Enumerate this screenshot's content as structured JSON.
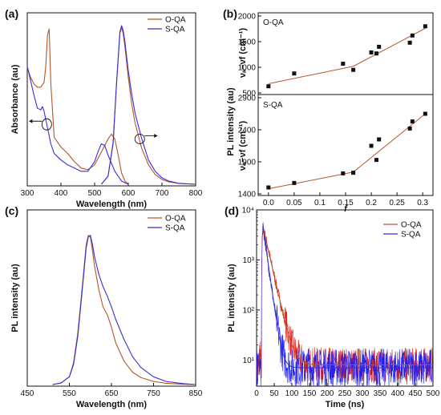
{
  "panels": [
    {
      "id": "a",
      "label": "(a)"
    },
    {
      "id": "b",
      "label": "(b)"
    },
    {
      "id": "c",
      "label": "(c)"
    },
    {
      "id": "d",
      "label": "(d)"
    }
  ],
  "colors": {
    "oqa": "#b5552a",
    "sqa": "#3a2fd1",
    "oqa_noise": "#e0221d",
    "sqa_noise": "#1f1ff0",
    "fit": "#b5552a",
    "marker": "#111111"
  },
  "chart_data": [
    {
      "id": "a",
      "type": "line",
      "xlabel": "Wavelength (nm)",
      "ylabel": "Absorbance (au)",
      "xlim": [
        300,
        800
      ],
      "xticks": [
        300,
        400,
        500,
        600,
        700,
        800
      ],
      "yticks": false,
      "arrows": "left-arrow near 360 nm (absorbance), right-arrow near 640 nm (PL)",
      "legend": "top-right",
      "series": [
        {
          "name": "O-QA",
          "role": "absorbance",
          "x": [
            300,
            310,
            320,
            330,
            340,
            350,
            355,
            360,
            365,
            370,
            380,
            400,
            420,
            440,
            460,
            480,
            500,
            520,
            540,
            550,
            560,
            570,
            580,
            590,
            600
          ],
          "y": [
            0.72,
            0.66,
            0.62,
            0.6,
            0.6,
            0.63,
            0.73,
            0.92,
            0.96,
            0.62,
            0.29,
            0.23,
            0.19,
            0.14,
            0.1,
            0.09,
            0.12,
            0.2,
            0.28,
            0.31,
            0.28,
            0.18,
            0.07,
            0.02,
            0.0
          ]
        },
        {
          "name": "S-QA",
          "role": "absorbance",
          "x": [
            300,
            310,
            320,
            330,
            340,
            345,
            350,
            360,
            370,
            380,
            400,
            420,
            440,
            460,
            480,
            500,
            510,
            520,
            530,
            540,
            560,
            580,
            600
          ],
          "y": [
            0.73,
            0.64,
            0.55,
            0.47,
            0.46,
            0.48,
            0.45,
            0.35,
            0.25,
            0.19,
            0.15,
            0.12,
            0.1,
            0.08,
            0.08,
            0.14,
            0.2,
            0.25,
            0.24,
            0.18,
            0.08,
            0.02,
            0.0
          ]
        },
        {
          "name": "O-QA",
          "role": "photoluminescence",
          "x": [
            520,
            540,
            555,
            565,
            575,
            580,
            585,
            590,
            600,
            610,
            620,
            640,
            660,
            680,
            700,
            720,
            750,
            800
          ],
          "y": [
            0.0,
            0.05,
            0.25,
            0.62,
            0.93,
            0.97,
            0.93,
            0.85,
            0.66,
            0.5,
            0.38,
            0.22,
            0.12,
            0.06,
            0.03,
            0.015,
            0.005,
            0.0
          ]
        },
        {
          "name": "S-QA",
          "role": "photoluminescence",
          "x": [
            520,
            540,
            555,
            565,
            575,
            580,
            585,
            590,
            600,
            610,
            620,
            640,
            660,
            680,
            700,
            720,
            750,
            800
          ],
          "y": [
            0.0,
            0.05,
            0.26,
            0.62,
            0.94,
            0.98,
            0.95,
            0.88,
            0.7,
            0.56,
            0.44,
            0.28,
            0.15,
            0.08,
            0.04,
            0.02,
            0.006,
            0.0
          ]
        }
      ]
    },
    {
      "id": "b",
      "type": "scatter",
      "xlabel": "f",
      "ylabel": "νₐ−νf (cm⁻¹)",
      "shared_ylabel": "PL intensity (au)",
      "xlim": [
        -0.02,
        0.32
      ],
      "xticks": [
        0.0,
        0.05,
        0.1,
        0.15,
        0.2,
        0.25,
        0.3
      ],
      "subplots": [
        {
          "name": "O-QA",
          "ylim": [
            500,
            2000
          ],
          "yticks": [
            500,
            1000,
            1500,
            2000
          ],
          "points": {
            "x": [
              0.0,
              0.05,
              0.145,
              0.165,
              0.2,
              0.21,
              0.215,
              0.275,
              0.28,
              0.305
            ],
            "y": [
              630,
              880,
              1070,
              950,
              1290,
              1270,
              1400,
              1480,
              1620,
              1800
            ]
          },
          "fit": {
            "x": [
              0.0,
              0.165,
              0.305
            ],
            "y": [
              680,
              1020,
              1760
            ]
          }
        },
        {
          "name": "S-QA",
          "ylim": [
            1400,
            2900
          ],
          "yticks": [
            1400,
            1900,
            2400,
            2900
          ],
          "points": {
            "x": [
              0.0,
              0.05,
              0.145,
              0.165,
              0.2,
              0.21,
              0.215,
              0.275,
              0.28,
              0.305
            ],
            "y": [
              1500,
              1570,
              1720,
              1730,
              2150,
              1930,
              2250,
              2420,
              2530,
              2650
            ]
          },
          "fit": {
            "x": [
              0.0,
              0.165,
              0.305
            ],
            "y": [
              1480,
              1740,
              2650
            ]
          }
        }
      ]
    },
    {
      "id": "c",
      "type": "line",
      "xlabel": "Wavelength (nm)",
      "ylabel": "PL intensity (au)",
      "xlim": [
        450,
        850
      ],
      "xticks": [
        450,
        550,
        650,
        750,
        850
      ],
      "yticks": false,
      "legend": "top-right",
      "series": [
        {
          "name": "O-QA",
          "x": [
            510,
            530,
            550,
            560,
            570,
            580,
            590,
            595,
            600,
            605,
            610,
            620,
            630,
            640,
            650,
            660,
            680,
            700,
            720,
            750,
            780,
            820,
            850
          ],
          "y": [
            0.0,
            0.01,
            0.05,
            0.14,
            0.33,
            0.61,
            0.9,
            0.96,
            0.95,
            0.86,
            0.76,
            0.61,
            0.5,
            0.45,
            0.37,
            0.27,
            0.15,
            0.08,
            0.045,
            0.02,
            0.008,
            0.002,
            0.0
          ]
        },
        {
          "name": "S-QA",
          "x": [
            510,
            530,
            550,
            560,
            570,
            580,
            590,
            595,
            600,
            605,
            610,
            620,
            630,
            640,
            650,
            660,
            680,
            700,
            720,
            750,
            780,
            820,
            850
          ],
          "y": [
            0.0,
            0.01,
            0.05,
            0.13,
            0.31,
            0.59,
            0.88,
            0.95,
            0.96,
            0.9,
            0.82,
            0.71,
            0.63,
            0.57,
            0.5,
            0.42,
            0.29,
            0.18,
            0.11,
            0.05,
            0.02,
            0.006,
            0.0
          ]
        }
      ]
    },
    {
      "id": "d",
      "type": "line",
      "xlabel": "Time (ns)",
      "ylabel": "PL intensity (au)",
      "xscale": "linear",
      "yscale": "log",
      "xlim": [
        0,
        500
      ],
      "xticks": [
        0,
        50,
        100,
        150,
        200,
        250,
        300,
        350,
        400,
        450,
        500
      ],
      "ylim": [
        3,
        10000
      ],
      "yticks": [
        10,
        100,
        1000,
        10000
      ],
      "yticklabels": [
        "10¹",
        "10²",
        "10³",
        "10⁴"
      ],
      "legend": "top-right",
      "series": [
        {
          "name": "O-QA",
          "peak_time": 18,
          "peak": 4800,
          "decay_ns": 13.8,
          "noise_floor": 8
        },
        {
          "name": "S-QA",
          "peak_time": 18,
          "peak": 4800,
          "decay_ns": 8.6,
          "noise_floor": 7
        }
      ]
    }
  ]
}
